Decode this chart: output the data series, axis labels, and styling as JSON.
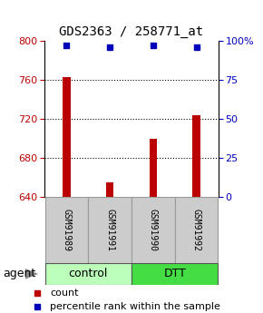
{
  "title": "GDS2363 / 258771_at",
  "samples": [
    "GSM91989",
    "GSM91991",
    "GSM91990",
    "GSM91992"
  ],
  "counts": [
    763,
    655,
    700,
    724
  ],
  "percentiles": [
    97,
    96,
    97,
    96
  ],
  "groups": [
    "control",
    "control",
    "DTT",
    "DTT"
  ],
  "group_colors": {
    "control": "#bbffbb",
    "DTT": "#44dd44"
  },
  "bar_color": "#bb0000",
  "dot_color": "#0000bb",
  "ylim_left": [
    640,
    800
  ],
  "ylim_right": [
    0,
    100
  ],
  "yticks_left": [
    640,
    680,
    720,
    760,
    800
  ],
  "yticks_right": [
    0,
    25,
    50,
    75,
    100
  ],
  "yticklabels_right": [
    "0",
    "25",
    "50",
    "75",
    "100%"
  ],
  "bg_color": "#ffffff",
  "sample_box_color": "#cccccc",
  "legend_count_color": "#bb0000",
  "legend_pct_color": "#0000bb",
  "bar_width": 0.18
}
